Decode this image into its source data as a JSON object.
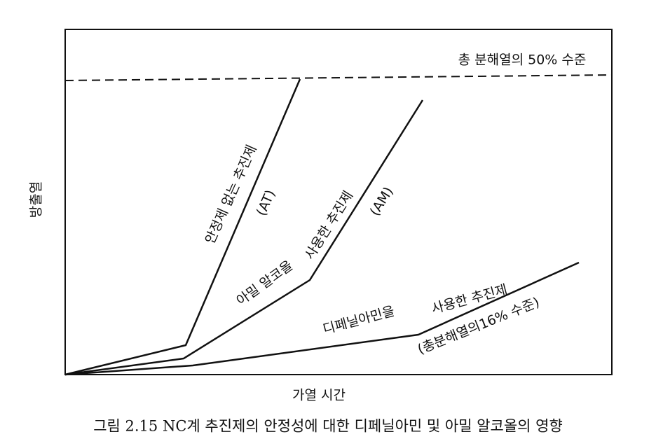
{
  "axes": {
    "y_label": "방출열",
    "x_label": "가열 시간"
  },
  "reference_line": {
    "label": "총 분해열의 50% 수준"
  },
  "curves": [
    {
      "label": "안정제 없는 추진제",
      "code": "(AT)"
    },
    {
      "label_lines": [
        "아밀 알코올",
        "사용한 추진제"
      ],
      "code": "(AM)"
    },
    {
      "label_lines": [
        "디페닐아민을",
        "사용한 추진제"
      ],
      "note": "(총분해열의16% 수준)"
    }
  ],
  "caption": "그림 2.15 NC계 추진제의 안정성에 대한 디페닐아민 및 아밀 알코올의 영향"
}
